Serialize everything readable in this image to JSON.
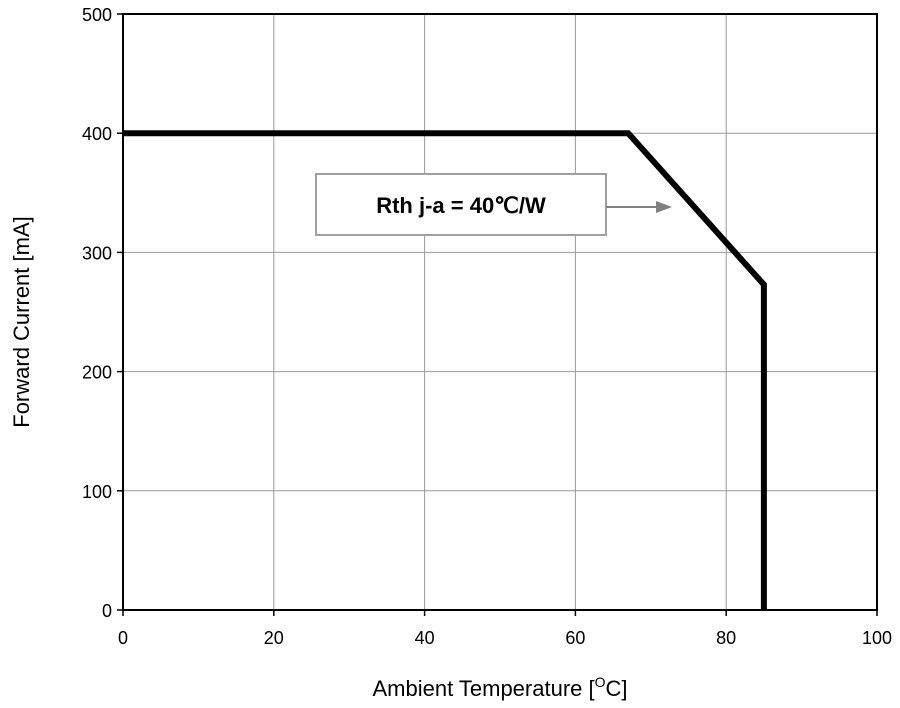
{
  "chart_data": {
    "type": "line",
    "title": "",
    "xlabel": "Ambient Temperature [",
    "xlabel_sup": "O",
    "xlabel_suffix": "C]",
    "ylabel": "Forward Current [mA]",
    "xlim": [
      0,
      100
    ],
    "ylim": [
      0,
      500
    ],
    "xticks": [
      0,
      20,
      40,
      60,
      80,
      100
    ],
    "yticks": [
      0,
      100,
      200,
      300,
      400,
      500
    ],
    "grid": true,
    "series": [
      {
        "x": [
          0,
          67,
          85,
          85
        ],
        "y": [
          400,
          400,
          273,
          0
        ],
        "color": "#000000"
      }
    ],
    "annotation": {
      "text": "Rth j-a = 40℃/W",
      "border_color": "#a0a0a0",
      "arrow_color": "#808080"
    }
  }
}
